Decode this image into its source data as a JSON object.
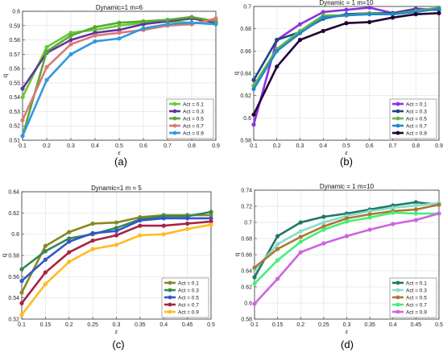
{
  "chart_data": [
    {
      "type": "line",
      "title": "Dynamic=1 m=6",
      "xlabel": "ε",
      "ylabel": "q",
      "xlim": [
        0.1,
        0.9
      ],
      "ylim": [
        0.51,
        0.6
      ],
      "xticks": [
        "0.1",
        "0.2",
        "0.3",
        "0.4",
        "0.5",
        "0.6",
        "0.7",
        "0.8",
        "0.9"
      ],
      "yticks": [
        "0.51",
        "0.52",
        "0.53",
        "0.54",
        "0.55",
        "0.56",
        "0.57",
        "0.58",
        "0.59",
        "0.6"
      ],
      "x": [
        0.1,
        0.2,
        0.3,
        0.4,
        0.5,
        0.6,
        0.7,
        0.8,
        0.9
      ],
      "grid": true,
      "legend_position": "bottom-right",
      "panel_label": "(a)",
      "series": [
        {
          "name": "Act = 0.1",
          "color": "#66cc33",
          "values": [
            0.54,
            0.575,
            0.585,
            0.587,
            0.59,
            0.592,
            0.593,
            0.592,
            0.591
          ]
        },
        {
          "name": "Act = 0.3",
          "color": "#663399",
          "values": [
            0.546,
            0.571,
            0.58,
            0.585,
            0.587,
            0.591,
            0.593,
            0.595,
            0.592
          ]
        },
        {
          "name": "Act = 0.5",
          "color": "#55aa33",
          "values": [
            0.513,
            0.572,
            0.583,
            0.589,
            0.592,
            0.593,
            0.594,
            0.596,
            0.593
          ]
        },
        {
          "name": "Act = 0.7",
          "color": "#dd7777",
          "values": [
            0.524,
            0.561,
            0.577,
            0.583,
            0.585,
            0.587,
            0.59,
            0.591,
            0.595
          ]
        },
        {
          "name": "Act = 0.9",
          "color": "#3399dd",
          "values": [
            0.513,
            0.552,
            0.57,
            0.579,
            0.581,
            0.588,
            0.591,
            0.592,
            0.591
          ]
        }
      ]
    },
    {
      "type": "line",
      "title": "Dynamic = 1 m=10",
      "xlabel": "ε",
      "ylabel": "q",
      "xlim": [
        0.1,
        0.9
      ],
      "ylim": [
        0.58,
        0.7
      ],
      "xticks": [
        "0.1",
        "0.2",
        "0.3",
        "0.4",
        "0.5",
        "0.6",
        "0.7",
        "0.8",
        "0.9"
      ],
      "yticks": [
        "0.58",
        "0.6",
        "0.62",
        "0.64",
        "0.66",
        "0.68",
        "0.7"
      ],
      "x": [
        0.1,
        0.2,
        0.3,
        0.4,
        0.5,
        0.6,
        0.7,
        0.8,
        0.9
      ],
      "grid": true,
      "legend_position": "bottom-right",
      "panel_label": "(b)",
      "series": [
        {
          "name": "Act = 0.1",
          "color": "#8833dd",
          "values": [
            0.594,
            0.67,
            0.684,
            0.695,
            0.697,
            0.699,
            0.694,
            0.698,
            0.697
          ]
        },
        {
          "name": "Act = 0.3",
          "color": "#224488",
          "values": [
            0.634,
            0.67,
            0.677,
            0.689,
            0.693,
            0.694,
            0.694,
            0.697,
            0.697
          ]
        },
        {
          "name": "Act = 0.5",
          "color": "#66bb44",
          "values": [
            0.629,
            0.662,
            0.678,
            0.692,
            0.692,
            0.694,
            0.693,
            0.696,
            0.699
          ]
        },
        {
          "name": "Act = 0.7",
          "color": "#2288cc",
          "values": [
            0.626,
            0.66,
            0.676,
            0.69,
            0.692,
            0.693,
            0.693,
            0.695,
            0.698
          ]
        },
        {
          "name": "Act = 0.9",
          "color": "#220033",
          "values": [
            0.603,
            0.646,
            0.67,
            0.678,
            0.685,
            0.686,
            0.69,
            0.693,
            0.694
          ]
        }
      ]
    },
    {
      "type": "line",
      "title": "Dynamic=1 m = 5",
      "xlabel": "ε",
      "ylabel": "q",
      "xlim": [
        0.1,
        0.5
      ],
      "ylim": [
        0.52,
        0.64
      ],
      "xticks": [
        "0.1",
        "0.15",
        "0.2",
        "0.25",
        "0.3",
        "0.35",
        "0.4",
        "0.45",
        "0.5"
      ],
      "yticks": [
        "0.52",
        "0.54",
        "0.56",
        "0.58",
        "0.6",
        "0.62",
        "0.64"
      ],
      "x": [
        0.1,
        0.15,
        0.2,
        0.25,
        0.3,
        0.35,
        0.4,
        0.45,
        0.5
      ],
      "grid": true,
      "legend_position": "bottom-right",
      "panel_label": "(c)",
      "series": [
        {
          "name": "Act = 0.1",
          "color": "#888822",
          "values": [
            0.545,
            0.589,
            0.602,
            0.61,
            0.611,
            0.616,
            0.618,
            0.618,
            0.618
          ]
        },
        {
          "name": "Act = 0.3",
          "color": "#338855",
          "values": [
            0.567,
            0.584,
            0.596,
            0.6,
            0.606,
            0.614,
            0.617,
            0.617,
            0.621
          ]
        },
        {
          "name": "Act = 0.5",
          "color": "#3355cc",
          "values": [
            0.556,
            0.576,
            0.593,
            0.601,
            0.603,
            0.613,
            0.615,
            0.615,
            0.615
          ]
        },
        {
          "name": "Act = 0.7",
          "color": "#aa2244",
          "values": [
            0.535,
            0.564,
            0.583,
            0.594,
            0.599,
            0.608,
            0.608,
            0.61,
            0.612
          ]
        },
        {
          "name": "Act = 0.9",
          "color": "#ffbb22",
          "values": [
            0.524,
            0.553,
            0.574,
            0.586,
            0.59,
            0.599,
            0.6,
            0.605,
            0.609
          ]
        }
      ]
    },
    {
      "type": "line",
      "title": "Dynamic = 1 m=10",
      "xlabel": "ε",
      "ylabel": "q",
      "xlim": [
        0.1,
        0.5
      ],
      "ylim": [
        0.58,
        0.74
      ],
      "xticks": [
        "0.1",
        "0.15",
        "0.2",
        "0.25",
        "0.3",
        "0.35",
        "0.4",
        "0.45",
        "0.5"
      ],
      "yticks": [
        "0.58",
        "0.6",
        "0.62",
        "0.64",
        "0.66",
        "0.68",
        "0.7",
        "0.72",
        "0.74"
      ],
      "x": [
        0.1,
        0.15,
        0.2,
        0.25,
        0.3,
        0.35,
        0.4,
        0.45,
        0.5
      ],
      "grid": true,
      "legend_position": "bottom-right",
      "panel_label": "(d)",
      "series": [
        {
          "name": "Act = 0.1",
          "color": "#227766",
          "values": [
            0.632,
            0.683,
            0.7,
            0.707,
            0.711,
            0.716,
            0.721,
            0.725,
            0.722
          ]
        },
        {
          "name": "Act = 0.3",
          "color": "#88ddcc",
          "values": [
            0.641,
            0.673,
            0.689,
            0.7,
            0.708,
            0.714,
            0.718,
            0.721,
            0.724
          ]
        },
        {
          "name": "Act = 0.5",
          "color": "#aa7733",
          "values": [
            0.644,
            0.667,
            0.682,
            0.695,
            0.705,
            0.71,
            0.714,
            0.716,
            0.722
          ]
        },
        {
          "name": "Act = 0.7",
          "color": "#44ee77",
          "values": [
            0.624,
            0.653,
            0.676,
            0.691,
            0.701,
            0.706,
            0.712,
            0.711,
            0.711
          ]
        },
        {
          "name": "Act = 0.9",
          "color": "#cc66dd",
          "values": [
            0.599,
            0.63,
            0.663,
            0.674,
            0.683,
            0.691,
            0.698,
            0.703,
            0.711
          ]
        }
      ]
    }
  ]
}
